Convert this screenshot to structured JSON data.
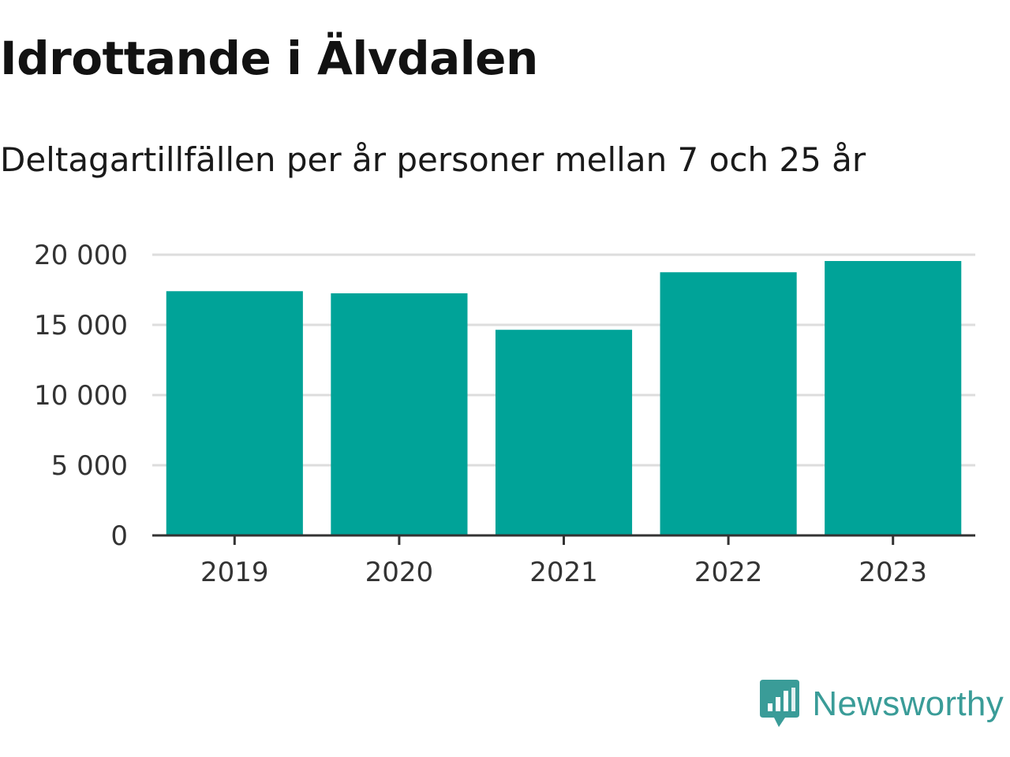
{
  "chart_data": {
    "type": "bar",
    "title": "Idrottande i Älvdalen",
    "subtitle": "Deltagartillfällen per år personer mellan 7 och 25 år",
    "categories": [
      "2019",
      "2020",
      "2021",
      "2022",
      "2023"
    ],
    "values": [
      17400,
      17250,
      14650,
      18750,
      19550
    ],
    "ylim": [
      0,
      20000
    ],
    "yticks": [
      0,
      5000,
      10000,
      15000,
      20000
    ],
    "ytick_labels": [
      "0",
      "5 000",
      "10 000",
      "15 000",
      "20 000"
    ],
    "grid": true,
    "legend": "none",
    "bar_color": "#00a398",
    "grid_color": "#dddddd",
    "axis_color": "#333333"
  },
  "brand": {
    "name": "Newsworthy",
    "icon": "newsworthy-logo-icon",
    "color": "#3a9c98"
  }
}
